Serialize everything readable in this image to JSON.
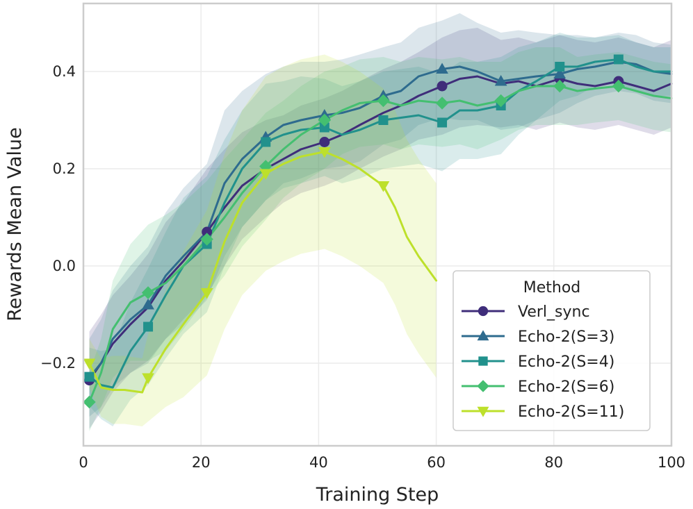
{
  "chart_data": {
    "type": "line",
    "xlabel": "Training Step",
    "ylabel": "Rewards Mean Value",
    "xlim": [
      0,
      100
    ],
    "ylim": [
      -0.37,
      0.54
    ],
    "xticks": [
      0,
      20,
      40,
      60,
      80,
      100
    ],
    "xtick_labels": [
      "0",
      "20",
      "40",
      "60",
      "80",
      "100"
    ],
    "yticks": [
      -0.2,
      0.0,
      0.2,
      0.4
    ],
    "ytick_labels": [
      "−0.2",
      "0.0",
      "0.2",
      "0.4"
    ],
    "grid": true,
    "legend": {
      "title": "Method",
      "location": "lower-right"
    },
    "series": [
      {
        "name": "Verl_sync",
        "color": "#3f2d7a",
        "marker": "circle",
        "x": [
          1,
          3,
          5,
          8,
          11,
          14,
          17,
          21,
          24,
          27,
          31,
          34,
          37,
          41,
          44,
          47,
          51,
          54,
          57,
          61,
          64,
          67,
          71,
          74,
          77,
          81,
          84,
          87,
          91,
          94,
          97,
          100
        ],
        "y": [
          -0.235,
          -0.2,
          -0.16,
          -0.12,
          -0.085,
          -0.03,
          0.01,
          0.07,
          0.12,
          0.165,
          0.2,
          0.22,
          0.24,
          0.255,
          0.27,
          0.29,
          0.315,
          0.33,
          0.35,
          0.37,
          0.385,
          0.39,
          0.375,
          0.38,
          0.37,
          0.385,
          0.375,
          0.37,
          0.38,
          0.37,
          0.36,
          0.375
        ],
        "band_width": [
          0.1,
          0.1,
          0.1,
          0.1,
          0.11,
          0.12,
          0.12,
          0.13,
          0.12,
          0.11,
          0.1,
          0.09,
          0.09,
          0.09,
          0.09,
          0.09,
          0.09,
          0.09,
          0.09,
          0.1,
          0.1,
          0.1,
          0.09,
          0.09,
          0.09,
          0.09,
          0.09,
          0.09,
          0.09,
          0.09,
          0.09,
          0.09
        ],
        "marker_x": [
          1,
          21,
          41,
          61,
          81,
          91
        ]
      },
      {
        "name": "Echo-2(S=3)",
        "color": "#2e6b8e",
        "marker": "triangle-up",
        "x": [
          1,
          3,
          5,
          8,
          11,
          14,
          17,
          21,
          24,
          27,
          31,
          34,
          37,
          41,
          44,
          47,
          51,
          54,
          57,
          61,
          64,
          67,
          71,
          74,
          77,
          81,
          84,
          87,
          91,
          94,
          97,
          100
        ],
        "y": [
          -0.23,
          -0.2,
          -0.15,
          -0.11,
          -0.08,
          -0.02,
          0.02,
          0.07,
          0.17,
          0.22,
          0.265,
          0.29,
          0.3,
          0.31,
          0.315,
          0.325,
          0.35,
          0.36,
          0.39,
          0.405,
          0.41,
          0.4,
          0.38,
          0.385,
          0.39,
          0.395,
          0.405,
          0.41,
          0.42,
          0.415,
          0.4,
          0.395
        ],
        "band_width": [
          0.08,
          0.09,
          0.1,
          0.11,
          0.12,
          0.13,
          0.14,
          0.14,
          0.15,
          0.14,
          0.13,
          0.12,
          0.12,
          0.11,
          0.11,
          0.11,
          0.1,
          0.1,
          0.1,
          0.1,
          0.11,
          0.1,
          0.1,
          0.1,
          0.09,
          0.08,
          0.07,
          0.06,
          0.06,
          0.06,
          0.06,
          0.06
        ],
        "marker_x": [
          11,
          31,
          41,
          51,
          61,
          71,
          81
        ]
      },
      {
        "name": "Echo-2(S=4)",
        "color": "#21918c",
        "marker": "square",
        "x": [
          1,
          3,
          5,
          8,
          11,
          14,
          17,
          21,
          24,
          27,
          31,
          34,
          37,
          41,
          44,
          47,
          51,
          54,
          57,
          61,
          64,
          67,
          71,
          74,
          77,
          81,
          84,
          87,
          91,
          94,
          97,
          100
        ],
        "y": [
          -0.228,
          -0.245,
          -0.25,
          -0.175,
          -0.125,
          -0.06,
          0.0,
          0.045,
          0.13,
          0.2,
          0.255,
          0.27,
          0.28,
          0.285,
          0.27,
          0.28,
          0.3,
          0.305,
          0.31,
          0.295,
          0.32,
          0.32,
          0.33,
          0.36,
          0.38,
          0.41,
          0.41,
          0.42,
          0.425,
          0.41,
          0.4,
          0.4
        ],
        "band_width": [
          0.06,
          0.07,
          0.08,
          0.1,
          0.12,
          0.13,
          0.14,
          0.14,
          0.13,
          0.12,
          0.12,
          0.11,
          0.11,
          0.1,
          0.1,
          0.1,
          0.1,
          0.1,
          0.1,
          0.1,
          0.1,
          0.1,
          0.1,
          0.09,
          0.08,
          0.07,
          0.06,
          0.05,
          0.05,
          0.05,
          0.05,
          0.05
        ],
        "marker_x": [
          1,
          11,
          21,
          31,
          41,
          51,
          61,
          71,
          81,
          91
        ]
      },
      {
        "name": "Echo-2(S=6)",
        "color": "#44bf70",
        "marker": "diamond",
        "x": [
          1,
          3,
          5,
          8,
          11,
          14,
          17,
          21,
          24,
          27,
          31,
          34,
          37,
          41,
          44,
          47,
          51,
          54,
          57,
          61,
          64,
          67,
          71,
          74,
          77,
          81,
          84,
          87,
          91,
          94,
          97,
          100
        ],
        "y": [
          -0.28,
          -0.22,
          -0.13,
          -0.075,
          -0.055,
          -0.035,
          0.0,
          0.055,
          0.1,
          0.15,
          0.205,
          0.24,
          0.27,
          0.3,
          0.32,
          0.335,
          0.34,
          0.33,
          0.34,
          0.335,
          0.34,
          0.33,
          0.34,
          0.36,
          0.37,
          0.37,
          0.36,
          0.365,
          0.37,
          0.36,
          0.35,
          0.345
        ],
        "band_width": [
          0.06,
          0.07,
          0.1,
          0.12,
          0.14,
          0.14,
          0.13,
          0.12,
          0.12,
          0.11,
          0.11,
          0.1,
          0.1,
          0.1,
          0.09,
          0.09,
          0.09,
          0.09,
          0.09,
          0.09,
          0.09,
          0.09,
          0.08,
          0.08,
          0.08,
          0.08,
          0.07,
          0.07,
          0.07,
          0.07,
          0.07,
          0.07
        ],
        "marker_x": [
          1,
          11,
          21,
          31,
          41,
          51,
          61,
          71,
          81,
          91
        ]
      },
      {
        "name": "Echo-2(S=11)",
        "color": "#bde02b",
        "marker": "triangle-down",
        "x": [
          1,
          3,
          5,
          7,
          10,
          11,
          14,
          17,
          21,
          24,
          27,
          31,
          34,
          37,
          41,
          44,
          47,
          51,
          53,
          55,
          57,
          60
        ],
        "y": [
          -0.2,
          -0.25,
          -0.255,
          -0.255,
          -0.26,
          -0.23,
          -0.17,
          -0.12,
          -0.055,
          0.05,
          0.13,
          0.19,
          0.21,
          0.225,
          0.235,
          0.22,
          0.2,
          0.165,
          0.12,
          0.06,
          0.02,
          -0.03
        ],
        "band_width": [
          0.05,
          0.06,
          0.07,
          0.07,
          0.07,
          0.09,
          0.12,
          0.15,
          0.17,
          0.18,
          0.19,
          0.2,
          0.2,
          0.2,
          0.2,
          0.2,
          0.2,
          0.2,
          0.2,
          0.2,
          0.2,
          0.2
        ],
        "marker_x": [
          1,
          11,
          21,
          31,
          41,
          51
        ]
      }
    ]
  }
}
